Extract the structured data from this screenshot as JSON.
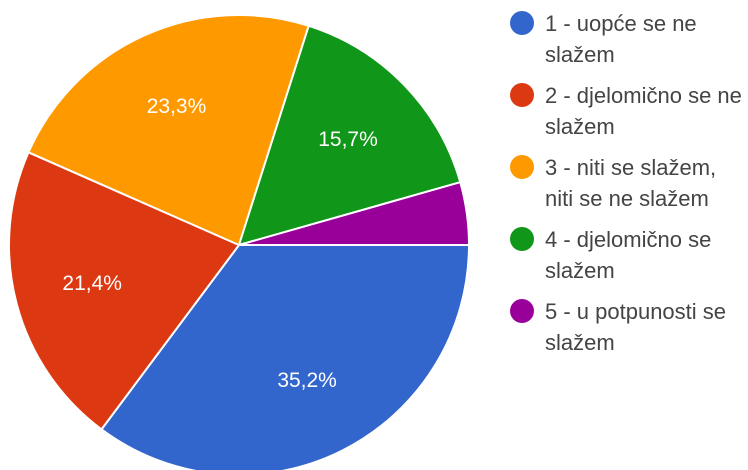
{
  "chart_data": {
    "type": "pie",
    "slices": [
      {
        "label": "1 - uopće se ne slažem",
        "value": 35.2,
        "value_label": "35,2%",
        "color": "#3366cc"
      },
      {
        "label": "2 - djelomično se ne slažem",
        "value": 21.4,
        "value_label": "21,4%",
        "color": "#dc3912"
      },
      {
        "label": "3 - niti se slažem, niti se ne slažem",
        "value": 23.3,
        "value_label": "23,3%",
        "color": "#ff9900"
      },
      {
        "label": "4 - djelomično se slažem",
        "value": 15.7,
        "value_label": "15,7%",
        "color": "#109618"
      },
      {
        "label": "5 - u potpunosti se slažem",
        "value": 4.4,
        "value_label": "",
        "color": "#990099"
      }
    ],
    "legend_position": "right"
  }
}
